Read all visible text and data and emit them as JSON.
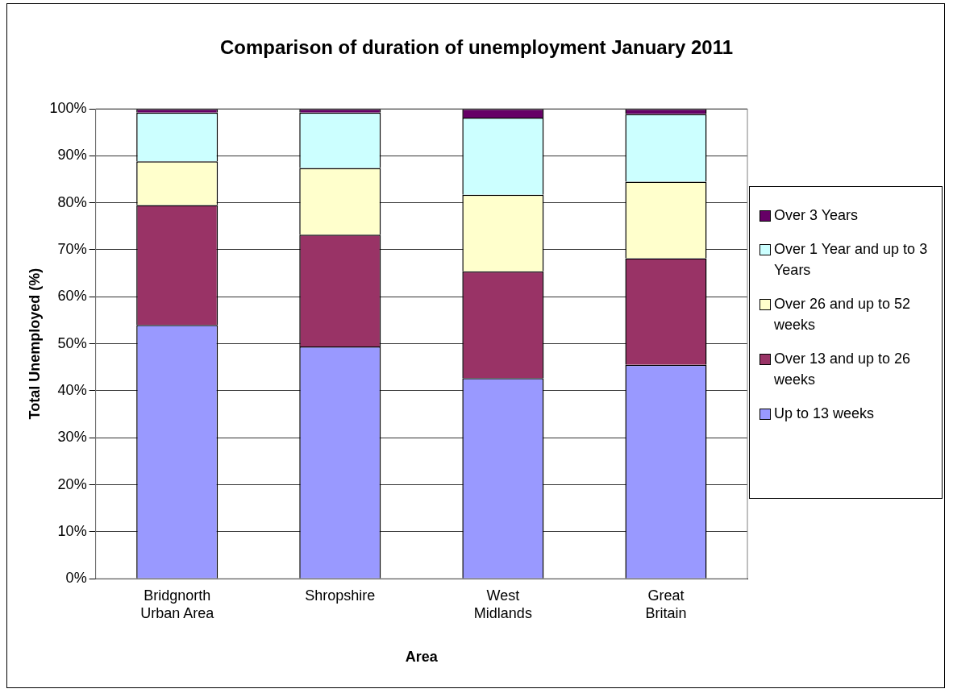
{
  "chart_data": {
    "type": "bar",
    "title": "Comparison of duration of unemployment January 2011",
    "xlabel": "Area",
    "ylabel": "Total Unemployed (%)",
    "categories": [
      "Bridgnorth Urban Area",
      "Shropshire",
      "West Midlands",
      "Great Britain"
    ],
    "stacked": true,
    "series": [
      {
        "name": "Up to 13 weeks",
        "color": "#9999ff",
        "values": [
          54,
          49.4,
          42.7,
          45.5
        ]
      },
      {
        "name": "Over 13 and up to 26 weeks",
        "color": "#993366",
        "values": [
          25.5,
          23.8,
          22.7,
          22.7
        ]
      },
      {
        "name": "Over 26 and up to 52 weeks",
        "color": "#ffffcc",
        "values": [
          9.3,
          14.2,
          16.3,
          16.3
        ]
      },
      {
        "name": "Over 1 Year and up to 3 Years",
        "color": "#ccffff",
        "values": [
          10.4,
          11.8,
          16.4,
          14.4
        ]
      },
      {
        "name": "Over 3 Years",
        "color": "#660066",
        "values": [
          0.8,
          0.8,
          1.9,
          1.1
        ]
      }
    ],
    "ylim": [
      0,
      100
    ],
    "yticks": [
      {
        "value": 0,
        "label": "0%"
      },
      {
        "value": 10,
        "label": "10%"
      },
      {
        "value": 20,
        "label": "20%"
      },
      {
        "value": 30,
        "label": "30%"
      },
      {
        "value": 40,
        "label": "40%"
      },
      {
        "value": 50,
        "label": "50%"
      },
      {
        "value": 60,
        "label": "60%"
      },
      {
        "value": 70,
        "label": "70%"
      },
      {
        "value": 80,
        "label": "80%"
      },
      {
        "value": 90,
        "label": "90%"
      },
      {
        "value": 100,
        "label": "100%"
      }
    ],
    "grid": "y",
    "legend": "right"
  }
}
